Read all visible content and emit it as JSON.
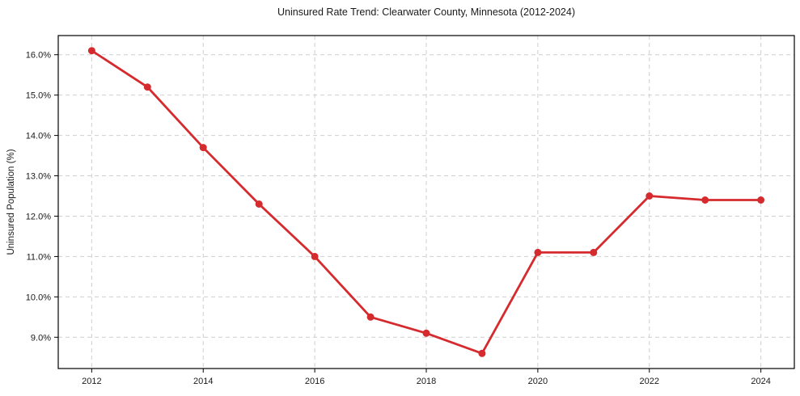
{
  "figure": {
    "background_color": "#ffffff"
  },
  "chart_data": {
    "type": "line",
    "title": "Uninsured Rate Trend: Clearwater County, Minnesota (2012-2024)",
    "xlabel": "",
    "ylabel": "Uninsured Population (%)",
    "x": [
      2012,
      2013,
      2014,
      2015,
      2016,
      2017,
      2018,
      2019,
      2020,
      2021,
      2022,
      2023,
      2024
    ],
    "values": [
      16.1,
      15.2,
      13.7,
      12.3,
      11.0,
      9.5,
      9.1,
      8.6,
      11.1,
      11.1,
      12.5,
      12.4,
      12.4
    ],
    "xlim": [
      2011.4,
      2024.6
    ],
    "ylim": [
      8.225,
      16.475
    ],
    "x_ticks": {
      "values": [
        2012,
        2014,
        2016,
        2018,
        2020,
        2022,
        2024
      ],
      "labels": [
        "2012",
        "2014",
        "2016",
        "2018",
        "2020",
        "2022",
        "2024"
      ]
    },
    "y_ticks": {
      "values": [
        9,
        10,
        11,
        12,
        13,
        14,
        15,
        16
      ],
      "labels": [
        "9.0%",
        "10.0%",
        "11.0%",
        "12.0%",
        "13.0%",
        "14.0%",
        "15.0%",
        "16.0%"
      ]
    },
    "grid": true,
    "grid_style": "dashed",
    "legend_position": "none",
    "marker": "circle",
    "line_color": "#d62b2e",
    "marker_color": "#d62b2e",
    "grid_color": "#cfcfcf",
    "axis_color": "#000000",
    "text_color": "#1a1a1a"
  }
}
